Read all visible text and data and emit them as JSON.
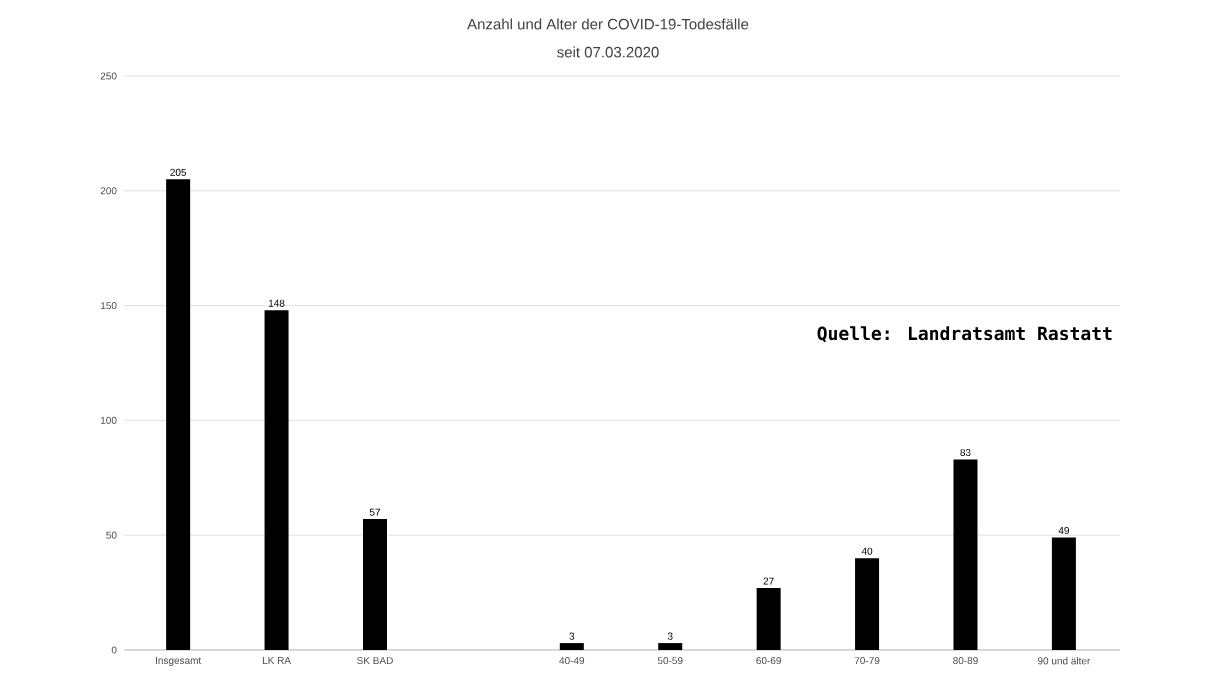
{
  "chart_data": {
    "type": "bar",
    "title": "Anzahl und Alter der COVID-19-Todesfälle",
    "subtitle": "seit 07.03.2020",
    "categories": [
      "Insgesamt",
      "LK RA",
      "SK BAD",
      null,
      "40-49",
      "50-59",
      "60-69",
      "70-79",
      "80-89",
      "90 und älter"
    ],
    "values": [
      205,
      148,
      57,
      null,
      3,
      3,
      27,
      40,
      83,
      49
    ],
    "color": "#000000",
    "ylim": [
      0,
      250
    ],
    "yticks": [
      0,
      50,
      100,
      150,
      200,
      250
    ],
    "grid": "y",
    "data_labels": true,
    "annotations": [
      "Quelle: Landratsamt Rastatt"
    ]
  }
}
